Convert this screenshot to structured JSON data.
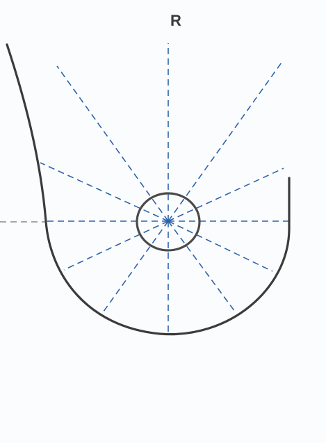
{
  "diagram": {
    "side_label": "R",
    "colors": {
      "outline": "#3b3b3b",
      "guide_lines": "#2e63a8",
      "horizontal_guide": "#8a8a8a",
      "background": "#fbfcfe"
    },
    "radial_line_count": 12
  }
}
